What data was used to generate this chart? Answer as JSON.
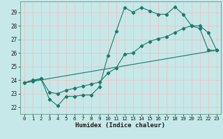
{
  "xlabel": "Humidex (Indice chaleur)",
  "background_color": "#c6e8e8",
  "grid_color": "#e8c8c8",
  "line_color": "#1a7a6a",
  "xlim": [
    -0.5,
    23.5
  ],
  "ylim": [
    21.5,
    29.8
  ],
  "xticks": [
    0,
    1,
    2,
    3,
    4,
    5,
    6,
    7,
    8,
    9,
    10,
    11,
    12,
    13,
    14,
    15,
    16,
    17,
    18,
    19,
    20,
    21,
    22,
    23
  ],
  "yticks": [
    22,
    23,
    24,
    25,
    26,
    27,
    28,
    29
  ],
  "curve1_x": [
    0,
    1,
    2,
    3,
    4,
    5,
    6,
    7,
    8,
    9,
    10,
    11,
    12,
    13,
    14,
    15,
    16,
    17,
    18,
    19,
    20,
    21,
    22,
    23
  ],
  "curve1_y": [
    23.8,
    24.0,
    24.1,
    22.6,
    22.1,
    22.8,
    22.8,
    22.9,
    22.9,
    23.5,
    25.8,
    27.6,
    29.35,
    29.0,
    29.35,
    29.1,
    28.85,
    28.85,
    29.4,
    28.85,
    28.0,
    27.8,
    26.2,
    26.2
  ],
  "curve2_x": [
    0,
    1,
    2,
    3,
    4,
    5,
    6,
    7,
    8,
    9,
    10,
    11,
    12,
    13,
    14,
    15,
    16,
    17,
    18,
    19,
    20,
    21,
    22,
    23
  ],
  "curve2_y": [
    23.8,
    23.9,
    24.1,
    23.1,
    23.0,
    23.25,
    23.4,
    23.55,
    23.7,
    23.85,
    24.5,
    24.9,
    25.9,
    26.0,
    26.5,
    26.85,
    27.05,
    27.2,
    27.5,
    27.8,
    28.0,
    28.0,
    27.5,
    26.2
  ],
  "curve3_x": [
    0,
    23
  ],
  "curve3_y": [
    23.8,
    26.2
  ]
}
